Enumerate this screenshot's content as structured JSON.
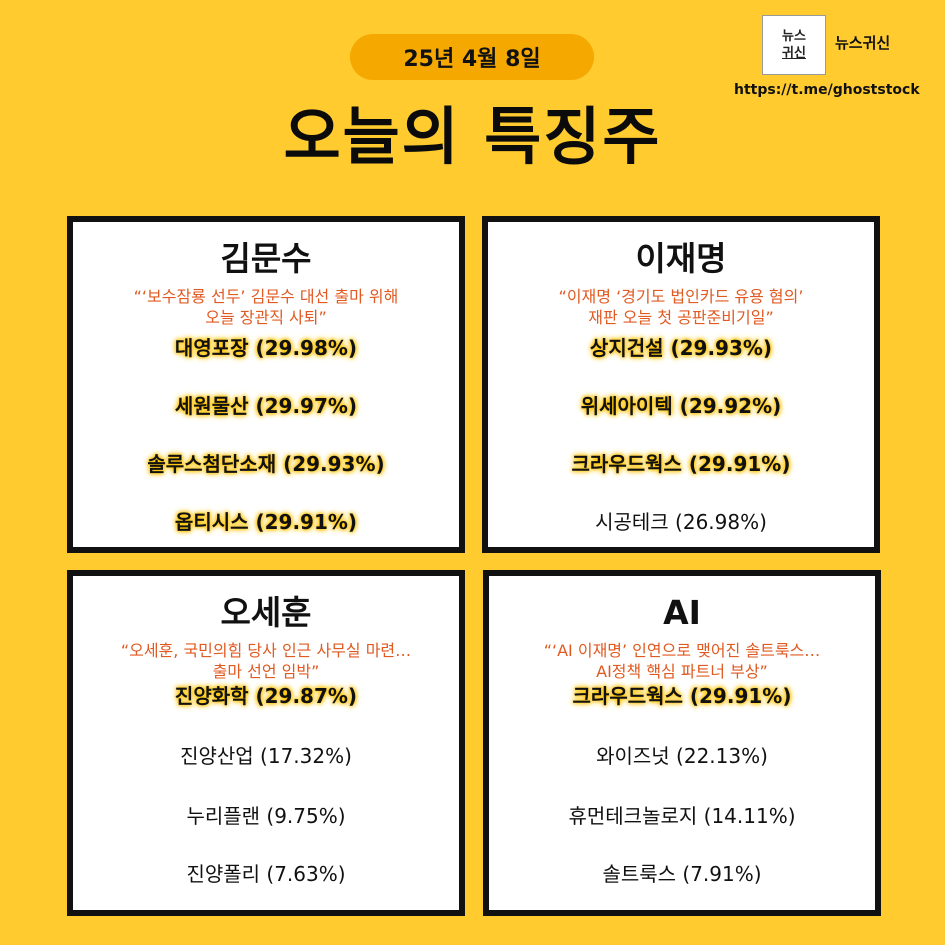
{
  "header": {
    "date": "25년 4월 8일",
    "title": "오늘의 특징주",
    "logo_line1": "뉴스",
    "logo_line2": "귀신",
    "brand_name": "뉴스귀신",
    "url": "https://t.me/ghoststock"
  },
  "panels": [
    {
      "title": "김문수",
      "quote": "“‘보수잠룡 선두’ 김문수 대선 출마 위해\n오늘 장관직 사퇴”",
      "stocks": [
        {
          "text": "대영포장 (29.98%)",
          "highlight": true
        },
        {
          "text": "세원물산 (29.97%)",
          "highlight": true
        },
        {
          "text": "솔루스첨단소재 (29.93%)",
          "highlight": true
        },
        {
          "text": "옵티시스 (29.91%)",
          "highlight": true
        }
      ]
    },
    {
      "title": "이재명",
      "quote": "“이재명 ‘경기도 법인카드 유용 혐의’\n재판 오늘 첫 공판준비기일”",
      "stocks": [
        {
          "text": "상지건설 (29.93%)",
          "highlight": true
        },
        {
          "text": "위세아이텍 (29.92%)",
          "highlight": true
        },
        {
          "text": "크라우드웍스 (29.91%)",
          "highlight": true
        },
        {
          "text": "시공테크 (26.98%)",
          "highlight": false
        }
      ]
    },
    {
      "title": "오세훈",
      "quote": "“오세훈, 국민의힘 당사 인근 사무실 마련…\n출마 선언 임박”",
      "stocks": [
        {
          "text": "진양화학 (29.87%)",
          "highlight": true
        },
        {
          "text": "진양산업 (17.32%)",
          "highlight": false
        },
        {
          "text": "누리플랜 (9.75%)",
          "highlight": false
        },
        {
          "text": "진양폴리 (7.63%)",
          "highlight": false
        }
      ]
    },
    {
      "title": "AI",
      "quote": "“‘AI 이재명’ 인연으로 맺어진 솔트룩스…\nAI정책 핵심 파트너 부상”",
      "stocks": [
        {
          "text": "크라우드웍스 (29.91%)",
          "highlight": true
        },
        {
          "text": "와이즈넛 (22.13%)",
          "highlight": false
        },
        {
          "text": "휴먼테크놀로지 (14.11%)",
          "highlight": false
        },
        {
          "text": "솔트룩스 (7.91%)",
          "highlight": false
        }
      ]
    }
  ],
  "colors": {
    "background": "#FFCB2F",
    "date_pill": "#F5A800",
    "quote": "#E05A22",
    "highlight_glow": "#FFC400"
  }
}
